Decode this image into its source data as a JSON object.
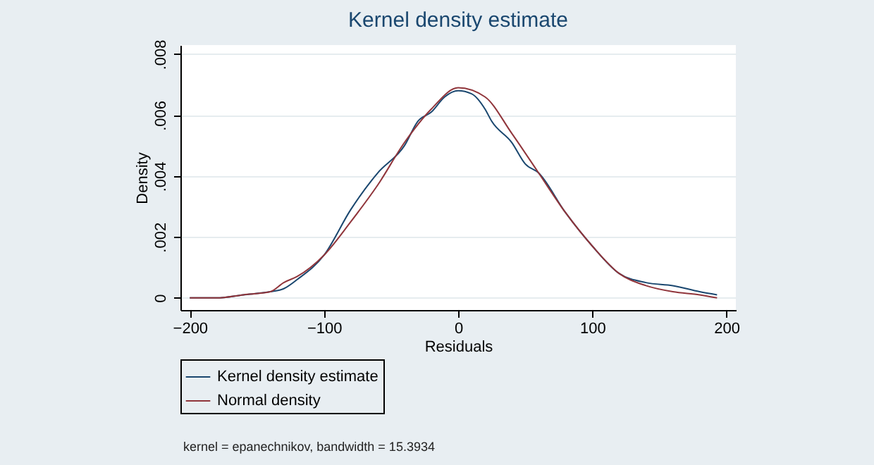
{
  "chart_data": {
    "type": "line",
    "title": "Kernel density estimate",
    "xlabel": "Residuals",
    "ylabel": "Density",
    "xlim": [
      -207,
      207
    ],
    "ylim": [
      -0.0004,
      0.0083
    ],
    "xticks": [
      -200,
      -100,
      0,
      100,
      200
    ],
    "yticks": [
      {
        "value": 0,
        "label": "0"
      },
      {
        "value": 0.002,
        "label": ".002"
      },
      {
        "value": 0.004,
        "label": ".004"
      },
      {
        "value": 0.006,
        "label": ".006"
      },
      {
        "value": 0.008,
        "label": ".008"
      }
    ],
    "grid": "y",
    "legend": "bottom",
    "marker": "none",
    "line_style": "solid",
    "annotations": [
      "kernel = epanechnikov, bandwidth = 15.3934"
    ],
    "series": [
      {
        "name": "Kernel density estimate",
        "color": "#1a476f",
        "x": [
          -200,
          -180,
          -160,
          -140,
          -130,
          -120,
          -100,
          -80,
          -60,
          -40,
          -30,
          -20,
          -10,
          0,
          10,
          20,
          25,
          40,
          50,
          60,
          80,
          100,
          120,
          140,
          160,
          180,
          193
        ],
        "values": [
          0,
          0,
          0.0001,
          0.0002,
          0.0003,
          0.0006,
          0.0014,
          0.0029,
          0.0041,
          0.005,
          0.0058,
          0.0061,
          0.0066,
          0.0068,
          0.0067,
          0.0062,
          0.0058,
          0.0051,
          0.0044,
          0.0041,
          0.0028,
          0.0017,
          0.0008,
          0.0005,
          0.0004,
          0.0002,
          0.0001
        ]
      },
      {
        "name": "Normal density",
        "color": "#90353b",
        "x": [
          -200,
          -180,
          -160,
          -140,
          -130,
          -120,
          -100,
          -80,
          -60,
          -40,
          -20,
          0,
          20,
          40,
          60,
          80,
          100,
          120,
          140,
          160,
          180,
          193
        ],
        "values": [
          0,
          0,
          0.0001,
          0.0002,
          0.0005,
          0.0007,
          0.0014,
          0.0025,
          0.0037,
          0.0051,
          0.0062,
          0.0069,
          0.0066,
          0.0054,
          0.0041,
          0.0028,
          0.0017,
          0.0008,
          0.0004,
          0.0002,
          0.0001,
          0
        ]
      }
    ]
  }
}
